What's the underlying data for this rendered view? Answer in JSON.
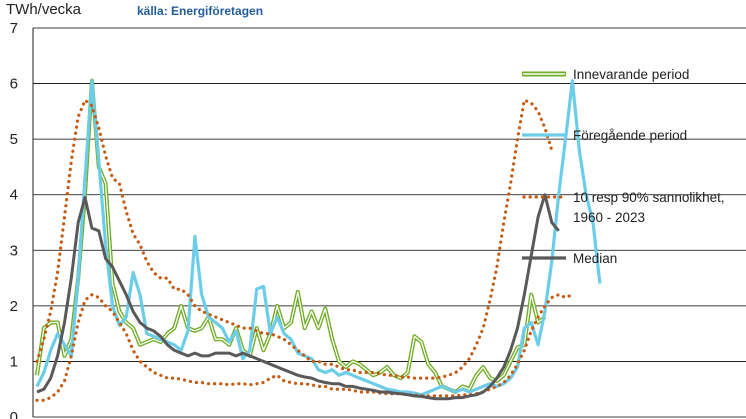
{
  "chart_data": {
    "type": "line",
    "title": "",
    "ylabel": "TWh/vecka",
    "source": "källa: Energiföretagen",
    "xlabel": "",
    "ylim": [
      0,
      7
    ],
    "yticks": [
      0,
      1,
      2,
      3,
      4,
      5,
      6,
      7
    ],
    "grid": true,
    "legend_position": "right",
    "x": [
      1,
      2,
      3,
      4,
      5,
      6,
      7,
      8,
      9,
      10,
      11,
      12,
      13,
      14,
      15,
      16,
      17,
      18,
      19,
      20,
      21,
      22,
      23,
      24,
      25,
      26,
      27,
      28,
      29,
      30,
      31,
      32,
      33,
      34,
      35,
      36,
      37,
      38,
      39,
      40,
      41,
      42,
      43,
      44,
      45,
      46,
      47,
      48,
      49,
      50,
      51,
      52,
      53,
      54,
      55,
      56,
      57,
      58,
      59,
      60,
      61,
      62,
      63,
      64,
      65,
      66,
      67,
      68,
      69,
      70,
      71,
      72,
      73,
      74,
      75,
      76,
      77,
      78,
      79,
      80,
      81,
      82,
      83,
      84,
      85,
      86,
      87,
      88,
      89,
      90,
      91,
      92,
      93,
      94,
      95,
      96,
      97,
      98,
      99,
      100,
      101,
      102,
      103,
      104
    ],
    "series": [
      {
        "name": "Innevarande period",
        "color": "#70ad26",
        "style": "double",
        "values": [
          0.75,
          1.6,
          1.7,
          1.7,
          1.1,
          1.4,
          2.5,
          4.0,
          6.05,
          4.5,
          4.2,
          2.4,
          1.9,
          1.7,
          1.6,
          1.3,
          1.35,
          1.4,
          1.35,
          1.5,
          1.6,
          2.0,
          1.6,
          1.55,
          1.6,
          1.8,
          1.4,
          1.4,
          1.3,
          1.6,
          1.2,
          1.1,
          1.6,
          1.2,
          1.5,
          2.0,
          1.6,
          1.7,
          2.25,
          1.6,
          1.9,
          1.6,
          1.95,
          1.4,
          1.0,
          0.9,
          1.0,
          0.95,
          0.85,
          0.75,
          0.8,
          0.9,
          0.75,
          0.7,
          0.8,
          1.45,
          1.35,
          0.95,
          0.8,
          0.55,
          0.5,
          0.45,
          0.55,
          0.5,
          0.75,
          0.9,
          0.7,
          0.65,
          0.75,
          1.0,
          1.25,
          1.3,
          2.2,
          1.7,
          1.8,
          null,
          null,
          null,
          null,
          null,
          null,
          null,
          null,
          null,
          null,
          null,
          null,
          null,
          null,
          null,
          null,
          null,
          null,
          null,
          null,
          null,
          null,
          null,
          null,
          null,
          null,
          null,
          null,
          null
        ]
      },
      {
        "name": "Föregående period",
        "color": "#6ccde9",
        "style": "solid",
        "values": [
          0.55,
          0.8,
          1.2,
          1.5,
          1.3,
          1.1,
          2.5,
          4.3,
          6.05,
          4.6,
          3.1,
          2.0,
          1.65,
          1.8,
          2.6,
          2.2,
          1.5,
          1.45,
          1.4,
          1.35,
          1.3,
          1.2,
          1.55,
          3.25,
          2.2,
          1.8,
          1.7,
          1.6,
          1.35,
          1.55,
          1.05,
          1.2,
          2.3,
          2.35,
          1.5,
          1.8,
          1.5,
          1.4,
          1.15,
          1.1,
          1.05,
          0.85,
          0.8,
          0.85,
          0.75,
          0.8,
          0.75,
          0.7,
          0.65,
          0.6,
          0.55,
          0.5,
          0.48,
          0.45,
          0.45,
          0.43,
          0.4,
          0.45,
          0.5,
          0.55,
          0.5,
          0.45,
          0.5,
          0.45,
          0.5,
          0.55,
          0.6,
          0.55,
          0.6,
          0.7,
          0.9,
          1.6,
          1.7,
          1.3,
          1.9,
          2.8,
          4.0,
          5.0,
          6.05,
          4.8,
          4.0,
          3.5,
          2.4,
          null,
          null,
          null,
          null,
          null,
          null,
          null,
          null,
          null,
          null,
          null,
          null,
          null,
          null,
          null,
          null,
          null,
          null,
          null,
          null,
          null
        ]
      },
      {
        "name": "10 resp 90% sannolikhet,",
        "name_line2": "1960 - 2023",
        "color": "#c55a11",
        "style": "dotted",
        "lower": [
          0.3,
          0.3,
          0.35,
          0.45,
          0.65,
          1.1,
          1.7,
          2.1,
          2.2,
          2.15,
          2.0,
          1.9,
          1.7,
          1.5,
          1.2,
          1.0,
          0.9,
          0.8,
          0.75,
          0.7,
          0.7,
          0.68,
          0.65,
          0.62,
          0.62,
          0.6,
          0.6,
          0.6,
          0.58,
          0.6,
          0.6,
          0.58,
          0.6,
          0.62,
          0.7,
          0.75,
          0.65,
          0.62,
          0.6,
          0.6,
          0.58,
          0.55,
          0.55,
          0.5,
          0.5,
          0.5,
          0.48,
          0.45,
          0.45,
          0.45,
          0.43,
          0.42,
          0.42,
          0.42,
          0.4,
          0.4,
          0.38,
          0.38,
          0.38,
          0.38,
          0.38,
          0.38,
          0.4,
          0.4,
          0.42,
          0.45,
          0.5,
          0.55,
          0.62,
          0.75,
          0.95,
          1.2,
          1.55,
          1.8,
          2.0,
          2.15,
          2.2,
          2.15,
          2.2,
          null,
          null,
          null,
          null,
          null,
          null,
          null,
          null,
          null,
          null,
          null,
          null,
          null,
          null,
          null,
          null,
          null,
          null,
          null,
          null,
          null,
          null,
          null,
          null,
          null
        ],
        "upper": [
          1.0,
          1.4,
          1.9,
          2.6,
          3.6,
          4.6,
          5.4,
          5.7,
          5.6,
          5.2,
          4.7,
          4.3,
          4.2,
          3.7,
          3.3,
          3.1,
          2.8,
          2.6,
          2.5,
          2.5,
          2.3,
          2.3,
          2.2,
          2.0,
          1.9,
          1.85,
          1.8,
          1.75,
          1.7,
          1.65,
          1.6,
          1.6,
          1.55,
          1.5,
          1.5,
          1.45,
          1.4,
          1.3,
          1.2,
          1.1,
          1.0,
          1.0,
          0.95,
          0.95,
          0.9,
          0.85,
          0.85,
          0.8,
          0.8,
          0.8,
          0.78,
          0.75,
          0.75,
          0.72,
          0.72,
          0.7,
          0.7,
          0.7,
          0.7,
          0.72,
          0.75,
          0.8,
          0.9,
          1.05,
          1.3,
          1.6,
          2.1,
          2.7,
          3.5,
          4.2,
          5.0,
          5.7,
          5.65,
          5.5,
          5.2,
          4.8,
          null,
          null,
          null,
          null,
          null,
          null,
          null,
          null,
          null,
          null,
          null,
          null,
          null,
          null,
          null,
          null,
          null,
          null,
          null,
          null,
          null,
          null,
          null,
          null,
          null,
          null,
          null,
          null
        ]
      },
      {
        "name": "Median",
        "color": "#595959",
        "style": "solid",
        "values": [
          0.45,
          0.5,
          0.7,
          1.1,
          1.7,
          2.5,
          3.5,
          3.95,
          3.4,
          3.35,
          2.85,
          2.7,
          2.45,
          2.2,
          1.9,
          1.7,
          1.6,
          1.55,
          1.45,
          1.3,
          1.2,
          1.15,
          1.1,
          1.15,
          1.1,
          1.1,
          1.15,
          1.15,
          1.15,
          1.1,
          1.15,
          1.1,
          1.05,
          1.0,
          0.95,
          0.9,
          0.85,
          0.8,
          0.75,
          0.72,
          0.7,
          0.65,
          0.62,
          0.6,
          0.6,
          0.55,
          0.55,
          0.52,
          0.5,
          0.48,
          0.45,
          0.45,
          0.43,
          0.42,
          0.4,
          0.38,
          0.37,
          0.35,
          0.33,
          0.33,
          0.33,
          0.35,
          0.35,
          0.38,
          0.4,
          0.45,
          0.55,
          0.7,
          0.9,
          1.2,
          1.6,
          2.2,
          2.9,
          3.6,
          4.0,
          3.5,
          3.35,
          null,
          null,
          null,
          null,
          null,
          null,
          null,
          null,
          null,
          null,
          null,
          null,
          null,
          null,
          null,
          null,
          null,
          null,
          null,
          null,
          null,
          null,
          null,
          null,
          null,
          null,
          null
        ]
      }
    ]
  }
}
